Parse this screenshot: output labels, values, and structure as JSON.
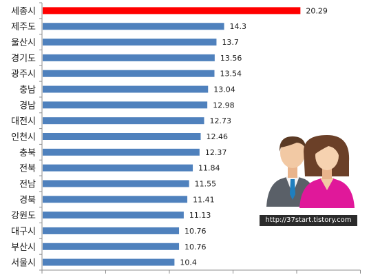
{
  "chart_data": {
    "type": "bar",
    "orientation": "horizontal",
    "categories": [
      "세종시",
      "제주도",
      "울산시",
      "경기도",
      "광주시",
      "충남",
      "경남",
      "대전시",
      "인천시",
      "충북",
      "전북",
      "전남",
      "경북",
      "강원도",
      "대구시",
      "부산시",
      "서울시"
    ],
    "values": [
      20.29,
      14.3,
      13.7,
      13.56,
      13.54,
      13.04,
      12.98,
      12.73,
      12.46,
      12.37,
      11.84,
      11.55,
      11.41,
      11.13,
      10.76,
      10.76,
      10.4
    ],
    "value_labels": [
      "20.29",
      "14.3",
      "13.7",
      "13.56",
      "13.54",
      "13.04",
      "12.98",
      "12.73",
      "12.46",
      "12.37",
      "11.84",
      "11.55",
      "11.41",
      "11.13",
      "10.76",
      "10.76",
      "10.4"
    ],
    "xlim": [
      0,
      25
    ],
    "x_tick_interval": 5,
    "colors": {
      "highlight": "#ff0000",
      "bar": "#4f81bd",
      "axis": "#8c8c8c"
    },
    "highlight_index": 0,
    "grid": false,
    "title": "",
    "xlabel": "",
    "ylabel": ""
  },
  "decoration": {
    "watermark_text": "http://37start.tistory.com",
    "icon": "people-couple-icon"
  }
}
